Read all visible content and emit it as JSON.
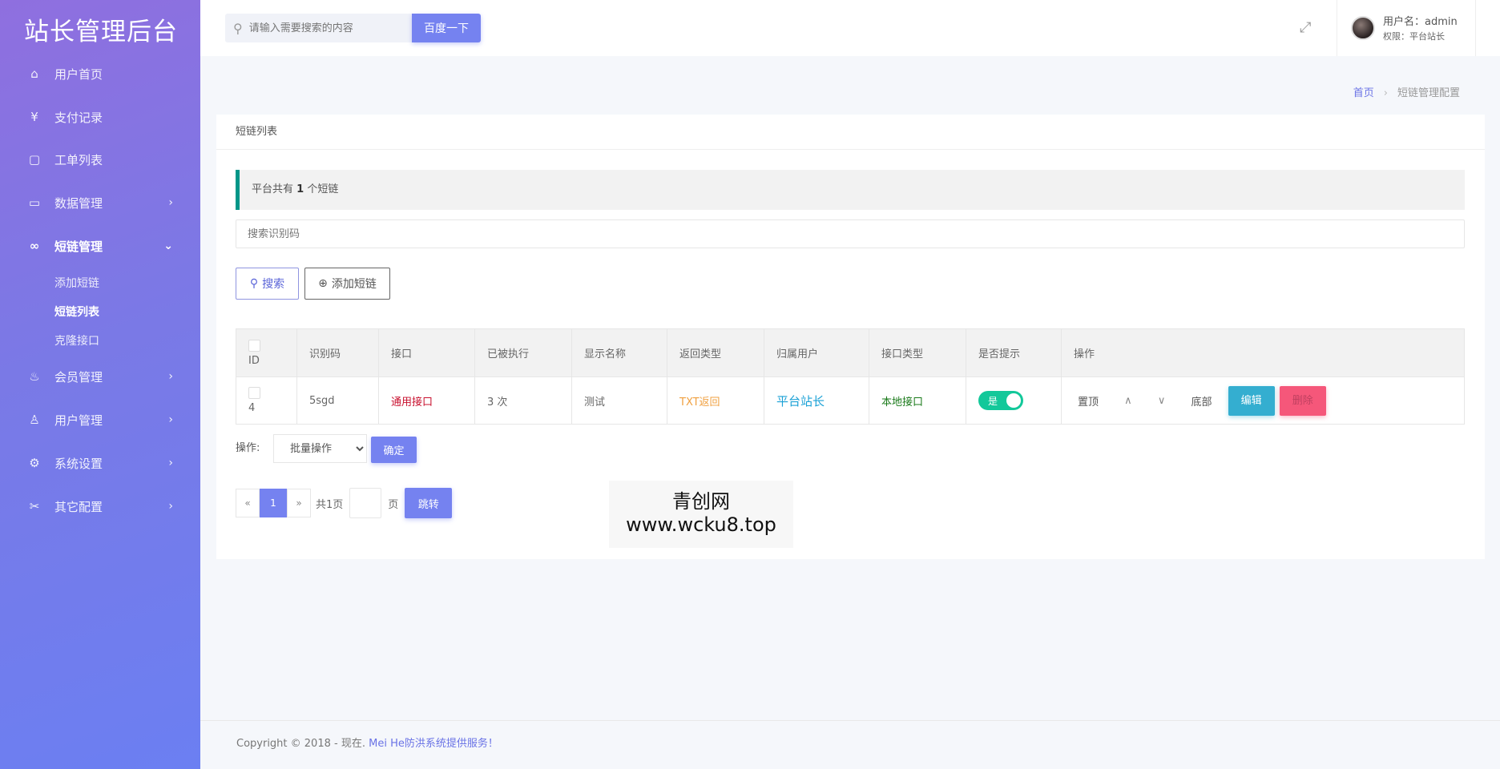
{
  "app_title": "站长管理后台",
  "sidebar": {
    "items": [
      {
        "label": "用户首页",
        "icon": "home-icon"
      },
      {
        "label": "支付记录",
        "icon": "yen-icon"
      },
      {
        "label": "工单列表",
        "icon": "ticket-icon"
      },
      {
        "label": "数据管理",
        "icon": "calendar-icon"
      },
      {
        "label": "短链管理",
        "icon": "link-icon"
      },
      {
        "label": "会员管理",
        "icon": "fire-icon"
      },
      {
        "label": "用户管理",
        "icon": "user-icon"
      },
      {
        "label": "系统设置",
        "icon": "gear-icon"
      },
      {
        "label": "其它配置",
        "icon": "tools-icon"
      }
    ],
    "sub_items": [
      {
        "label": "添加短链"
      },
      {
        "label": "短链列表"
      },
      {
        "label": "克隆接口"
      }
    ]
  },
  "header": {
    "search_placeholder": "请输入需要搜索的内容",
    "search_button": "百度一下",
    "username": "用户名：admin",
    "role": "权限：平台站长"
  },
  "breadcrumb": {
    "home": "首页",
    "current": "短链管理配置"
  },
  "card": {
    "title": "短链列表",
    "alert_prefix": "平台共有",
    "alert_count": "1",
    "alert_suffix": "个短链",
    "code_placeholder": "搜索识别码",
    "search_button": "搜索",
    "add_button": "添加短链"
  },
  "table": {
    "headers": [
      "ID",
      "识别码",
      "接口",
      "已被执行",
      "显示名称",
      "返回类型",
      "归属用户",
      "接口类型",
      "是否提示",
      "操作"
    ],
    "rows": [
      {
        "id": "4",
        "code": "5sgd",
        "api": "通用接口",
        "executed": "3 次",
        "name": "测试",
        "return_type": "TXT返回",
        "owner": "平台站长",
        "api_type": "本地接口",
        "prompt": "是",
        "prompt_on": true
      }
    ],
    "actions": {
      "top": "置顶",
      "up": "∧",
      "down": "∨",
      "bottom": "底部",
      "edit": "编辑",
      "delete": "删除"
    }
  },
  "batch": {
    "label": "操作:",
    "selected": "批量操作",
    "confirm": "确定"
  },
  "pagination": {
    "prev": "«",
    "current": "1",
    "next": "»",
    "total": "共1页",
    "unit": "页",
    "jump": "跳转"
  },
  "watermark": {
    "line1": "青创网",
    "line2": "www.wcku8.top"
  },
  "footer": {
    "prefix": "Copyright © 2018 - 现在.",
    "link": "Mei He防洪系统提供服务！"
  },
  "colors": {
    "accent": "#7582f0",
    "alert_border": "#009688",
    "api_red": "#c8102e",
    "return_orange": "#f0a040",
    "owner_blue": "#1ba1d6",
    "api_type_green": "#1a7a1a",
    "toggle_green": "#13c89a",
    "edit": "#34aed0",
    "delete": "#f5577a"
  }
}
